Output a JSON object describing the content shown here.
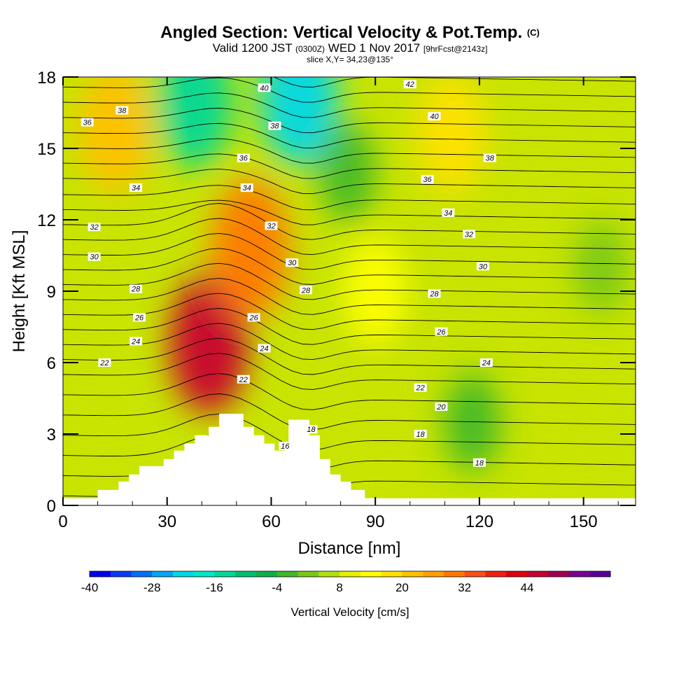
{
  "header": {
    "title": "Angled Section: Vertical Velocity & Pot.Temp.",
    "title_mark": "(C)",
    "valid_prefix": "Valid 1200 JST",
    "valid_utc": "(0300Z)",
    "valid_date": "WED 1 Nov 2017",
    "forecast": "[9hrFcst@2143z]",
    "slice": "slice X,Y= 34,23@135°"
  },
  "chart_data": {
    "type": "heatmap",
    "xlabel": "Distance [nm]",
    "ylabel": "Height [Kft MSL]",
    "xlim": [
      0,
      165
    ],
    "ylim": [
      0,
      18
    ],
    "x_ticks": [
      "0",
      "30",
      "60",
      "90",
      "120",
      "150"
    ],
    "x_tick_values": [
      0,
      30,
      60,
      90,
      120,
      150
    ],
    "y_ticks": [
      "0",
      "3",
      "6",
      "9",
      "12",
      "15",
      "18"
    ],
    "y_tick_values": [
      0,
      3,
      6,
      9,
      12,
      15,
      18
    ],
    "colorbar": {
      "title": "Vertical Velocity [cm/s]",
      "tick_labels": [
        "-40",
        "-28",
        "-16",
        "-4",
        "8",
        "20",
        "32",
        "44"
      ],
      "tick_values": [
        -40,
        -28,
        -16,
        -4,
        8,
        20,
        32,
        44
      ],
      "levels": [
        -40,
        -36,
        -32,
        -28,
        -24,
        -20,
        -16,
        -12,
        -8,
        -4,
        0,
        4,
        8,
        12,
        16,
        20,
        24,
        28,
        32,
        36,
        40,
        44,
        48,
        52
      ],
      "colors": [
        "#0000f0",
        "#0a3cf5",
        "#0070f5",
        "#00a8f0",
        "#00d8e8",
        "#00e8c8",
        "#00d898",
        "#00c070",
        "#10b048",
        "#40b828",
        "#78c818",
        "#b0e010",
        "#e6f000",
        "#ffff00",
        "#ffe000",
        "#ffc000",
        "#ffa000",
        "#ff7800",
        "#f85018",
        "#f02010",
        "#e00010",
        "#c80030",
        "#a00050",
        "#780090",
        "#5a0098"
      ]
    },
    "background_color": "#c8e400",
    "velocity_features": [
      {
        "x": 42,
        "y": 6.8,
        "value": 40
      },
      {
        "x": 54,
        "y": 10.8,
        "value": 24
      },
      {
        "x": 15,
        "y": 15.8,
        "value": 16
      },
      {
        "x": 112,
        "y": 15.6,
        "value": 14
      },
      {
        "x": 90,
        "y": 9.0,
        "value": 10
      },
      {
        "x": 38,
        "y": 17.0,
        "value": -18
      },
      {
        "x": 68,
        "y": 17.2,
        "value": -26
      },
      {
        "x": 82,
        "y": 14.0,
        "value": -6
      },
      {
        "x": 155,
        "y": 10.0,
        "value": -4
      },
      {
        "x": 118,
        "y": 3.5,
        "value": -6
      }
    ],
    "terrain_profile": [
      [
        10,
        0
      ],
      [
        10,
        0.65
      ],
      [
        16,
        0.65
      ],
      [
        16,
        1.0
      ],
      [
        19,
        1.0
      ],
      [
        19,
        1.3
      ],
      [
        22,
        1.3
      ],
      [
        22,
        1.65
      ],
      [
        29,
        1.65
      ],
      [
        29,
        1.95
      ],
      [
        32,
        1.95
      ],
      [
        32,
        2.3
      ],
      [
        35,
        2.3
      ],
      [
        35,
        2.6
      ],
      [
        38,
        2.6
      ],
      [
        38,
        2.95
      ],
      [
        42,
        2.95
      ],
      [
        42,
        3.3
      ],
      [
        45,
        3.3
      ],
      [
        45,
        3.85
      ],
      [
        52,
        3.85
      ],
      [
        52,
        3.3
      ],
      [
        55,
        3.3
      ],
      [
        55,
        2.95
      ],
      [
        58,
        2.95
      ],
      [
        58,
        2.6
      ],
      [
        61,
        2.6
      ],
      [
        61,
        2.3
      ],
      [
        64,
        2.3
      ],
      [
        64,
        2.6
      ],
      [
        65,
        2.6
      ],
      [
        65,
        3.6
      ],
      [
        71,
        3.6
      ],
      [
        71,
        2.95
      ],
      [
        74,
        2.95
      ],
      [
        74,
        1.95
      ],
      [
        77,
        1.95
      ],
      [
        77,
        1.3
      ],
      [
        80,
        1.3
      ],
      [
        80,
        1.0
      ],
      [
        83,
        1.0
      ],
      [
        83,
        0.65
      ],
      [
        87,
        0.65
      ],
      [
        87,
        0.3
      ],
      [
        90,
        0.3
      ],
      [
        90,
        0
      ]
    ],
    "isentropes": [
      16,
      17,
      18,
      19,
      20,
      21,
      22,
      23,
      24,
      25,
      26,
      27,
      28,
      29,
      30,
      31,
      32,
      33,
      34,
      35,
      36,
      37,
      38,
      39,
      40,
      41,
      42
    ],
    "isentrope_labels": [
      {
        "text": "16",
        "x": 64,
        "y": 2.5
      },
      {
        "text": "18",
        "x": 71.5,
        "y": 3.2
      },
      {
        "text": "18",
        "x": 103,
        "y": 3.0
      },
      {
        "text": "18",
        "x": 120,
        "y": 1.8
      },
      {
        "text": "20",
        "x": 109,
        "y": 4.15
      },
      {
        "text": "22",
        "x": 12,
        "y": 6.0
      },
      {
        "text": "22",
        "x": 52,
        "y": 5.3
      },
      {
        "text": "22",
        "x": 103,
        "y": 4.95
      },
      {
        "text": "24",
        "x": 21,
        "y": 6.9
      },
      {
        "text": "24",
        "x": 58,
        "y": 6.6
      },
      {
        "text": "24",
        "x": 122,
        "y": 6.0
      },
      {
        "text": "26",
        "x": 22,
        "y": 7.9
      },
      {
        "text": "26",
        "x": 55,
        "y": 7.9
      },
      {
        "text": "26",
        "x": 109,
        "y": 7.3
      },
      {
        "text": "28",
        "x": 21,
        "y": 9.1
      },
      {
        "text": "28",
        "x": 70,
        "y": 9.05
      },
      {
        "text": "28",
        "x": 107,
        "y": 8.9
      },
      {
        "text": "30",
        "x": 9,
        "y": 10.45
      },
      {
        "text": "30",
        "x": 66,
        "y": 10.2
      },
      {
        "text": "30",
        "x": 121,
        "y": 10.05
      },
      {
        "text": "32",
        "x": 9,
        "y": 11.7
      },
      {
        "text": "32",
        "x": 60,
        "y": 11.75
      },
      {
        "text": "32",
        "x": 117,
        "y": 11.4
      },
      {
        "text": "34",
        "x": 21,
        "y": 13.35
      },
      {
        "text": "34",
        "x": 53,
        "y": 13.35
      },
      {
        "text": "34",
        "x": 111,
        "y": 12.3
      },
      {
        "text": "36",
        "x": 7,
        "y": 16.1
      },
      {
        "text": "36",
        "x": 52,
        "y": 14.6
      },
      {
        "text": "36",
        "x": 105,
        "y": 13.7
      },
      {
        "text": "38",
        "x": 17,
        "y": 16.6
      },
      {
        "text": "38",
        "x": 61,
        "y": 15.95
      },
      {
        "text": "38",
        "x": 123,
        "y": 14.6
      },
      {
        "text": "40",
        "x": 58,
        "y": 17.55
      },
      {
        "text": "40",
        "x": 107,
        "y": 16.35
      },
      {
        "text": "42",
        "x": 100,
        "y": 17.7
      }
    ]
  }
}
